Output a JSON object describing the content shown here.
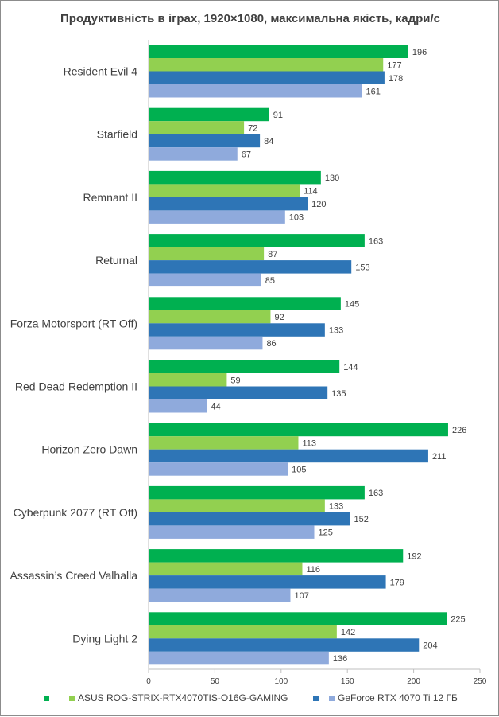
{
  "chart_data": {
    "type": "bar",
    "orientation": "horizontal",
    "title": "Продуктивність в іграх, 1920×1080, максимальна якість, кадри/с",
    "categories": [
      "Resident Evil 4",
      "Starfield",
      "Remnant II",
      "Returnal",
      "Forza Motorsport (RT Off)",
      "Red Dead Redemption II",
      "Horizon Zero Dawn",
      "Cyberpunk 2077 (RT Off)",
      "Assassin’s Creed  Valhalla",
      "Dying Light 2"
    ],
    "series": [
      {
        "name": "",
        "color": "#00b050",
        "values": [
          196,
          91,
          130,
          163,
          145,
          144,
          226,
          163,
          192,
          225
        ]
      },
      {
        "name": "ASUS ROG-STRIX-RTX4070TIS-O16G-GAMING",
        "color": "#92d050",
        "values": [
          177,
          72,
          114,
          87,
          92,
          59,
          113,
          133,
          116,
          142
        ]
      },
      {
        "name": "",
        "color": "#2e75b6",
        "values": [
          178,
          84,
          120,
          153,
          133,
          135,
          211,
          152,
          179,
          204
        ]
      },
      {
        "name": "GeForce RTX 4070 Ti 12 ГБ",
        "color": "#8faadc",
        "values": [
          161,
          67,
          103,
          85,
          86,
          44,
          105,
          125,
          107,
          136
        ]
      }
    ],
    "xlim": [
      0,
      250
    ],
    "xticks": [
      0,
      50,
      100,
      150,
      200,
      250
    ],
    "grid": false,
    "legend_position": "bottom"
  }
}
